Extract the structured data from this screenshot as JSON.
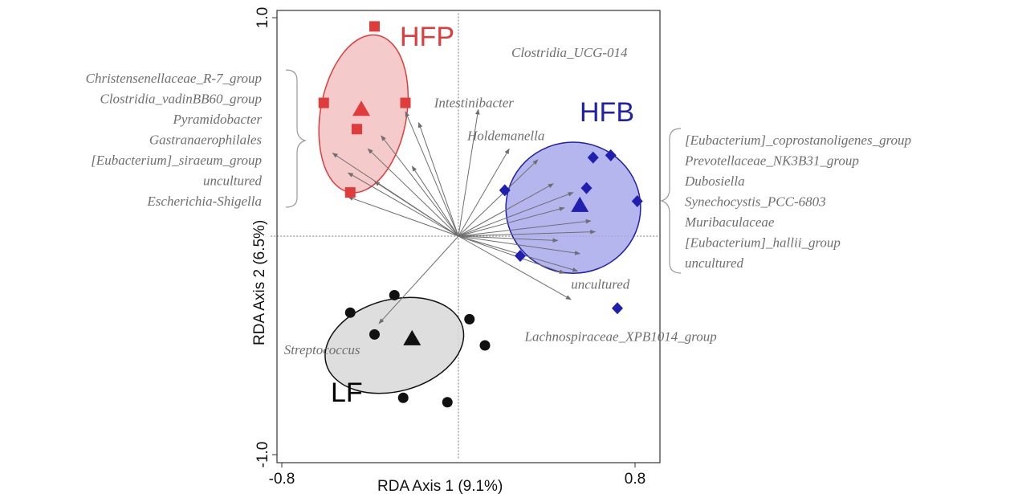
{
  "chart_data": {
    "type": "scatter",
    "xlabel": "RDA Axis 1 (9.1%)",
    "ylabel": "RDA Axis 2 (6.5%)",
    "xlim": [
      -0.85,
      0.92
    ],
    "ylim": [
      -1.02,
      1.02
    ],
    "x_ticks": [
      {
        "value": -0.8,
        "label": "-0.8"
      },
      {
        "value": 0.8,
        "label": "0.8"
      }
    ],
    "y_ticks": [
      {
        "value": 1.0,
        "label": "1.0"
      },
      {
        "value": -1.0,
        "label": "-1.0"
      }
    ],
    "groups": [
      {
        "label": "HFP",
        "color": "#e03c3c",
        "fill": "#f2c1c1",
        "marker": "square",
        "centroid": [
          -0.44,
          0.58
        ],
        "ellipse": {
          "cx": -0.43,
          "cy": 0.56,
          "rx": 0.39,
          "ry": 0.73,
          "rotate_deg": 10
        },
        "points": [
          [
            -0.38,
            0.96
          ],
          [
            -0.61,
            0.61
          ],
          [
            -0.24,
            0.61
          ],
          [
            -0.46,
            0.49
          ],
          [
            -0.49,
            0.2
          ]
        ]
      },
      {
        "label": "HFB",
        "color": "#1f1fb0",
        "fill": "#a9a9ec",
        "marker": "diamond",
        "centroid": [
          0.55,
          0.14
        ],
        "ellipse": {
          "cx": 0.52,
          "cy": 0.13,
          "rx": 0.61,
          "ry": 0.6,
          "rotate_deg": 0
        },
        "points": [
          [
            0.61,
            0.36
          ],
          [
            0.69,
            0.37
          ],
          [
            0.21,
            0.21
          ],
          [
            0.58,
            0.22
          ],
          [
            0.81,
            0.16
          ],
          [
            0.28,
            -0.09
          ],
          [
            0.72,
            -0.33
          ]
        ]
      },
      {
        "label": "LF",
        "color": "#111111",
        "fill": "#d8d8d8",
        "marker": "circle",
        "centroid": [
          -0.21,
          -0.47
        ],
        "ellipse": {
          "cx": -0.29,
          "cy": -0.5,
          "rx": 0.64,
          "ry": 0.42,
          "rotate_deg": -15
        },
        "points": [
          [
            -0.29,
            -0.27
          ],
          [
            -0.49,
            -0.35
          ],
          [
            -0.38,
            -0.45
          ],
          [
            0.05,
            -0.38
          ],
          [
            -0.25,
            -0.74
          ],
          [
            -0.05,
            -0.76
          ],
          [
            0.12,
            -0.5
          ]
        ]
      }
    ],
    "arrows": [
      {
        "x": -0.24,
        "y": 0.57
      },
      {
        "x": -0.35,
        "y": 0.46
      },
      {
        "x": -0.41,
        "y": 0.4
      },
      {
        "x": -0.57,
        "y": 0.38
      },
      {
        "x": -0.5,
        "y": 0.29
      },
      {
        "x": -0.38,
        "y": 0.25
      },
      {
        "x": -0.5,
        "y": 0.18
      },
      {
        "x": -0.18,
        "y": 0.52
      },
      {
        "x": -0.21,
        "y": 0.32
      },
      {
        "x": 0.09,
        "y": 0.58
      },
      {
        "x": 0.23,
        "y": 0.4
      },
      {
        "x": 0.36,
        "y": 0.35
      },
      {
        "x": 0.43,
        "y": 0.24
      },
      {
        "x": 0.52,
        "y": 0.2
      },
      {
        "x": 0.48,
        "y": 0.13
      },
      {
        "x": 0.6,
        "y": 0.07
      },
      {
        "x": 0.62,
        "y": 0.02
      },
      {
        "x": 0.45,
        "y": -0.02
      },
      {
        "x": 0.55,
        "y": -0.08
      },
      {
        "x": 0.54,
        "y": -0.16
      },
      {
        "x": 0.48,
        "y": -0.17
      },
      {
        "x": 0.51,
        "y": -0.29
      },
      {
        "x": -0.36,
        "y": -0.4
      }
    ],
    "annotations": [
      {
        "text": "Clostridia_UCG-014",
        "x": 0.24,
        "y": 0.82,
        "anchor": "start"
      },
      {
        "text": "Intestinibacter",
        "x": -0.11,
        "y": 0.59,
        "anchor": "start"
      },
      {
        "text": "Holdemanella",
        "x": 0.04,
        "y": 0.44,
        "anchor": "start"
      },
      {
        "text": "uncultured",
        "x": 0.51,
        "y": -0.24,
        "anchor": "start"
      },
      {
        "text": "Lachnospiraceae_XPB1014_group",
        "x": 0.3,
        "y": -0.48,
        "anchor": "start"
      },
      {
        "text": "Streptococcus",
        "x": -0.79,
        "y": -0.54,
        "anchor": "start"
      }
    ],
    "left_labels": [
      "Christensenellaceae_R-7_group",
      "Clostridia_vadinBB60_group",
      "Pyramidobacter",
      "Gastranaerophilales",
      "[Eubacterium]_siraeum_group",
      "uncultured",
      "Escherichia-Shigella"
    ],
    "right_labels": [
      "[Eubacterium]_coprostanoligenes_group",
      "Prevotellaceae_NK3B31_group",
      "Dubosiella",
      "Synechocystis_PCC-6803",
      "Muribaculaceae",
      "[Eubacterium]_hallii_group",
      "uncultured"
    ],
    "grid": false,
    "reference_lines": true
  }
}
